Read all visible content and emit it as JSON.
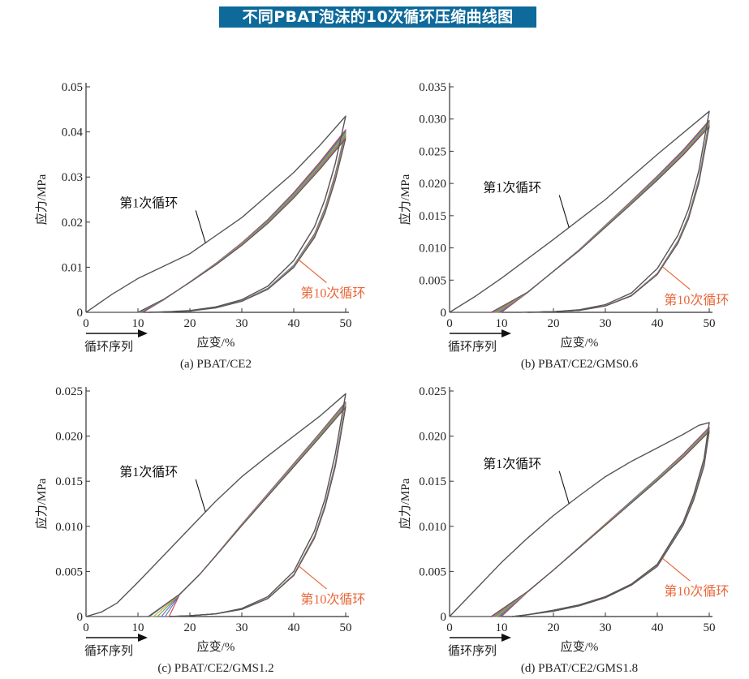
{
  "page": {
    "title": "不同PBAT泡沫的10次循环压缩曲线图"
  },
  "colors": {
    "banner_bg": "#0d6a9b",
    "axis": "#333333",
    "first_cycle": "#555555",
    "tenth_cycle_label": "#e9673a",
    "cycle_series": [
      "#e23b3b",
      "#3c78c8",
      "#8a5fb0",
      "#48b04a",
      "#e7902c",
      "#2aa7b0",
      "#a8843a",
      "#d65c9b",
      "#555555"
    ]
  },
  "chart_data": [
    {
      "id": "a",
      "type": "line",
      "caption": "(a) PBAT/CE2",
      "ylabel": "应力/MPa",
      "xlabel": "应变/%",
      "sequence_label": "循环序列",
      "xlim": [
        0,
        50
      ],
      "ylim": [
        0,
        0.05
      ],
      "x_ticks": [
        "0",
        "10",
        "20",
        "30",
        "40",
        "50"
      ],
      "y_ticks": [
        "0",
        "0.01",
        "0.02",
        "0.03",
        "0.04",
        "0.05"
      ],
      "annotations": {
        "first": "第1次循环",
        "tenth": "第10次循环"
      },
      "first_cycle": {
        "loading": [
          [
            0,
            0
          ],
          [
            5,
            0.004
          ],
          [
            10,
            0.0075
          ],
          [
            20,
            0.013
          ],
          [
            30,
            0.021
          ],
          [
            40,
            0.031
          ],
          [
            45,
            0.037
          ],
          [
            50,
            0.0435
          ]
        ],
        "unloading": [
          [
            50,
            0.0435
          ],
          [
            48,
            0.033
          ],
          [
            46,
            0.025
          ],
          [
            44,
            0.019
          ],
          [
            40,
            0.0115
          ],
          [
            35,
            0.0058
          ],
          [
            30,
            0.0028
          ],
          [
            25,
            0.0012
          ],
          [
            20,
            0.0004
          ],
          [
            15,
            0.0001
          ],
          [
            12,
            0
          ]
        ]
      },
      "later_cycles": {
        "start_range": [
          9,
          11
        ],
        "peak_range": [
          0.0385,
          0.0405
        ],
        "loading_y": [
          [
            10,
            0
          ],
          [
            15,
            0.003
          ],
          [
            20,
            0.0068
          ],
          [
            25,
            0.0108
          ],
          [
            30,
            0.0152
          ],
          [
            35,
            0.0202
          ],
          [
            40,
            0.026
          ],
          [
            45,
            0.0325
          ],
          [
            50,
            0.0395
          ]
        ],
        "unloading_y": [
          [
            50,
            0.0395
          ],
          [
            48,
            0.03
          ],
          [
            46,
            0.0225
          ],
          [
            44,
            0.017
          ],
          [
            40,
            0.0102
          ],
          [
            35,
            0.0052
          ],
          [
            30,
            0.0025
          ],
          [
            25,
            0.001
          ],
          [
            20,
            0.0003
          ],
          [
            15,
            0.0001
          ],
          [
            12,
            0
          ]
        ]
      }
    },
    {
      "id": "b",
      "type": "line",
      "caption": "(b) PBAT/CE2/GMS0.6",
      "ylabel": "应力/MPa",
      "xlabel": "应变/%",
      "sequence_label": "循环序列",
      "xlim": [
        0,
        50
      ],
      "ylim": [
        0,
        0.035
      ],
      "x_ticks": [
        "0",
        "10",
        "20",
        "30",
        "40",
        "50"
      ],
      "y_ticks": [
        "0",
        "0.005",
        "0.010",
        "0.015",
        "0.020",
        "0.025",
        "0.030",
        "0.035"
      ],
      "annotations": {
        "first": "第1次循环",
        "tenth": "第10次循环"
      },
      "first_cycle": {
        "loading": [
          [
            0,
            0
          ],
          [
            5,
            0.0025
          ],
          [
            10,
            0.0053
          ],
          [
            20,
            0.0113
          ],
          [
            30,
            0.0175
          ],
          [
            40,
            0.0245
          ],
          [
            50,
            0.0312
          ]
        ],
        "unloading": [
          [
            50,
            0.0312
          ],
          [
            48,
            0.022
          ],
          [
            46,
            0.016
          ],
          [
            44,
            0.012
          ],
          [
            40,
            0.0068
          ],
          [
            35,
            0.003
          ],
          [
            30,
            0.0012
          ],
          [
            25,
            0.0004
          ],
          [
            20,
            0.0001
          ],
          [
            15,
            0
          ]
        ]
      },
      "later_cycles": {
        "start_range": [
          8,
          10
        ],
        "peak_range": [
          0.0288,
          0.0298
        ],
        "loading_y": [
          [
            8,
            0
          ],
          [
            15,
            0.0032
          ],
          [
            20,
            0.0065
          ],
          [
            25,
            0.0098
          ],
          [
            30,
            0.0135
          ],
          [
            35,
            0.0172
          ],
          [
            40,
            0.021
          ],
          [
            45,
            0.025
          ],
          [
            50,
            0.0295
          ]
        ],
        "unloading_y": [
          [
            50,
            0.0295
          ],
          [
            48,
            0.0205
          ],
          [
            46,
            0.0148
          ],
          [
            44,
            0.011
          ],
          [
            40,
            0.006
          ],
          [
            35,
            0.0026
          ],
          [
            30,
            0.001
          ],
          [
            25,
            0.0003
          ],
          [
            20,
            0.0001
          ],
          [
            14,
            0
          ]
        ]
      }
    },
    {
      "id": "c",
      "type": "line",
      "caption": "(c) PBAT/CE2/GMS1.2",
      "ylabel": "应力/MPa",
      "xlabel": "应变/%",
      "sequence_label": "循环序列",
      "xlim": [
        0,
        50
      ],
      "ylim": [
        0,
        0.025
      ],
      "x_ticks": [
        "0",
        "10",
        "20",
        "30",
        "40",
        "50"
      ],
      "y_ticks": [
        "0",
        "0.005",
        "0.010",
        "0.015",
        "0.020",
        "0.025"
      ],
      "annotations": {
        "first": "第1次循环",
        "tenth": "第10次循环"
      },
      "first_cycle": {
        "loading": [
          [
            0,
            0
          ],
          [
            3,
            0.0005
          ],
          [
            6,
            0.0015
          ],
          [
            10,
            0.0038
          ],
          [
            15,
            0.0068
          ],
          [
            20,
            0.0098
          ],
          [
            25,
            0.0128
          ],
          [
            30,
            0.0155
          ],
          [
            35,
            0.0178
          ],
          [
            40,
            0.02
          ],
          [
            45,
            0.0222
          ],
          [
            50,
            0.0247
          ]
        ],
        "unloading": [
          [
            50,
            0.0247
          ],
          [
            48,
            0.018
          ],
          [
            46,
            0.013
          ],
          [
            44,
            0.0095
          ],
          [
            40,
            0.005
          ],
          [
            35,
            0.0022
          ],
          [
            30,
            0.0009
          ],
          [
            25,
            0.0003
          ],
          [
            20,
            0.0001
          ],
          [
            16,
            0
          ]
        ]
      },
      "later_cycles": {
        "start_range": [
          10,
          16
        ],
        "peak_range": [
          0.0232,
          0.0238
        ],
        "loading_y": [
          [
            12,
            0
          ],
          [
            18,
            0.0025
          ],
          [
            22,
            0.0048
          ],
          [
            25,
            0.0068
          ],
          [
            30,
            0.0102
          ],
          [
            35,
            0.0135
          ],
          [
            40,
            0.0168
          ],
          [
            45,
            0.0201
          ],
          [
            50,
            0.0235
          ]
        ],
        "unloading_y": [
          [
            50,
            0.0235
          ],
          [
            48,
            0.0168
          ],
          [
            46,
            0.0122
          ],
          [
            44,
            0.0088
          ],
          [
            40,
            0.0046
          ],
          [
            35,
            0.002
          ],
          [
            30,
            0.0008
          ],
          [
            25,
            0.0003
          ],
          [
            20,
            0.0001
          ],
          [
            16,
            0
          ]
        ]
      }
    },
    {
      "id": "d",
      "type": "line",
      "caption": "(d) PBAT/CE2/GMS1.8",
      "ylabel": "应力/MPa",
      "xlabel": "应变/%",
      "sequence_label": "循环序列",
      "xlim": [
        0,
        50
      ],
      "ylim": [
        0,
        0.025
      ],
      "x_ticks": [
        "0",
        "10",
        "20",
        "30",
        "40",
        "50"
      ],
      "y_ticks": [
        "0",
        "0.005",
        "0.010",
        "0.015",
        "0.020",
        "0.025"
      ],
      "annotations": {
        "first": "第1次循环",
        "tenth": "第10次循环"
      },
      "first_cycle": {
        "loading": [
          [
            0,
            0
          ],
          [
            5,
            0.003
          ],
          [
            10,
            0.006
          ],
          [
            15,
            0.0087
          ],
          [
            20,
            0.0112
          ],
          [
            25,
            0.0134
          ],
          [
            30,
            0.0155
          ],
          [
            35,
            0.0172
          ],
          [
            40,
            0.0187
          ],
          [
            45,
            0.0202
          ],
          [
            48,
            0.0212
          ],
          [
            50,
            0.0215
          ]
        ],
        "unloading": [
          [
            50,
            0.0215
          ],
          [
            49,
            0.0175
          ],
          [
            47,
            0.0135
          ],
          [
            45,
            0.0105
          ],
          [
            40,
            0.0058
          ],
          [
            35,
            0.0036
          ],
          [
            30,
            0.0022
          ],
          [
            25,
            0.0013
          ],
          [
            20,
            0.0007
          ],
          [
            15,
            0.0002
          ],
          [
            12,
            0
          ]
        ]
      },
      "later_cycles": {
        "start_range": [
          8,
          10
        ],
        "peak_range": [
          0.0205,
          0.021
        ],
        "loading_y": [
          [
            8,
            0
          ],
          [
            15,
            0.0028
          ],
          [
            20,
            0.0052
          ],
          [
            25,
            0.0077
          ],
          [
            30,
            0.0102
          ],
          [
            35,
            0.0127
          ],
          [
            40,
            0.0152
          ],
          [
            45,
            0.0178
          ],
          [
            50,
            0.0207
          ]
        ],
        "unloading_y": [
          [
            50,
            0.0207
          ],
          [
            49,
            0.0168
          ],
          [
            47,
            0.013
          ],
          [
            45,
            0.0102
          ],
          [
            40,
            0.0056
          ],
          [
            35,
            0.0035
          ],
          [
            30,
            0.0021
          ],
          [
            25,
            0.0012
          ],
          [
            20,
            0.0006
          ],
          [
            15,
            0.0002
          ],
          [
            12,
            0
          ]
        ]
      }
    }
  ]
}
